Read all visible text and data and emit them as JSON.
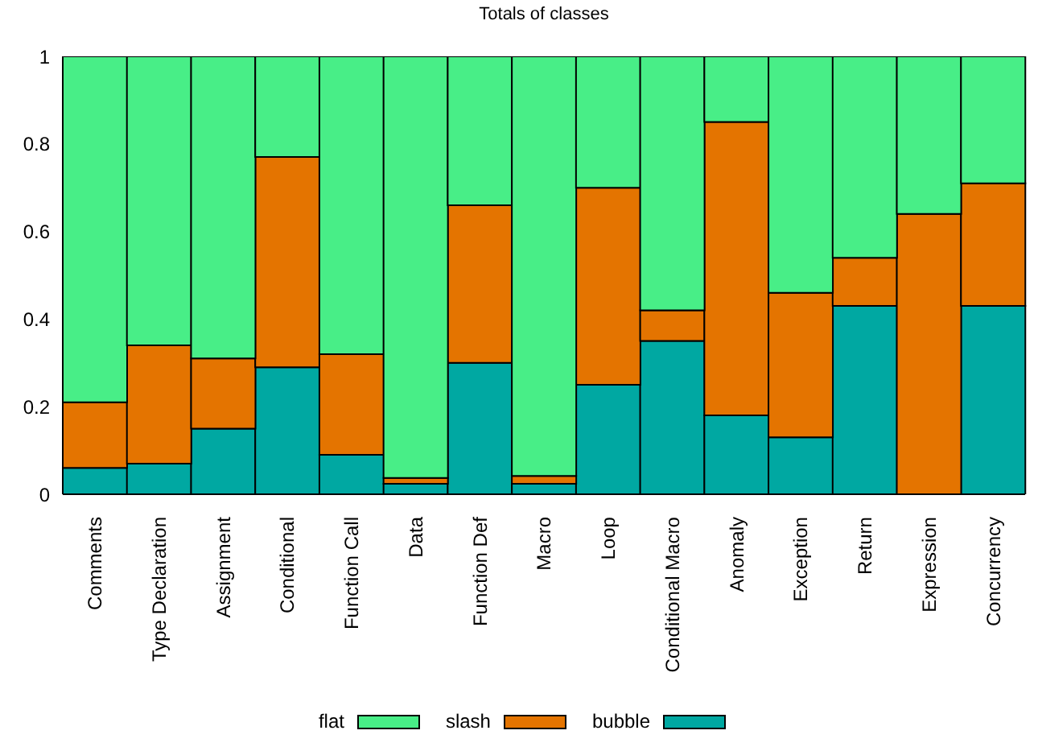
{
  "chart_data": {
    "type": "bar",
    "title": "Totals of classes",
    "categories": [
      "Comments",
      "Type Declaration",
      "Assignment",
      "Conditional",
      "Function Call",
      "Data",
      "Function Def",
      "Macro",
      "Loop",
      "Conditional Macro",
      "Anomaly",
      "Exception",
      "Return",
      "Expression",
      "Concurrency"
    ],
    "series": [
      {
        "name": "bubble",
        "color": "#00a8a2",
        "values": [
          0.06,
          0.07,
          0.15,
          0.29,
          0.09,
          0.024,
          0.3,
          0.024,
          0.25,
          0.35,
          0.18,
          0.13,
          0.43,
          0,
          0.43
        ]
      },
      {
        "name": "slash",
        "color": "#e47400",
        "values": [
          0.15,
          0.27,
          0.16,
          0.48,
          0.23,
          0.013,
          0.36,
          0.018,
          0.45,
          0.07,
          0.67,
          0.33,
          0.11,
          0.64,
          0.28
        ]
      },
      {
        "name": "flat",
        "color": "#48ee87",
        "values": [
          0.79,
          0.66,
          0.69,
          0.23,
          0.68,
          0.963,
          0.34,
          0.958,
          0.3,
          0.58,
          0.15,
          0.54,
          0.46,
          0.36,
          0.29
        ]
      }
    ],
    "stacked": true,
    "ylim": [
      0,
      1
    ],
    "yticks": [
      0,
      0.2,
      0.4,
      0.6,
      0.8,
      1
    ],
    "legend": "bottom",
    "grid": false
  }
}
